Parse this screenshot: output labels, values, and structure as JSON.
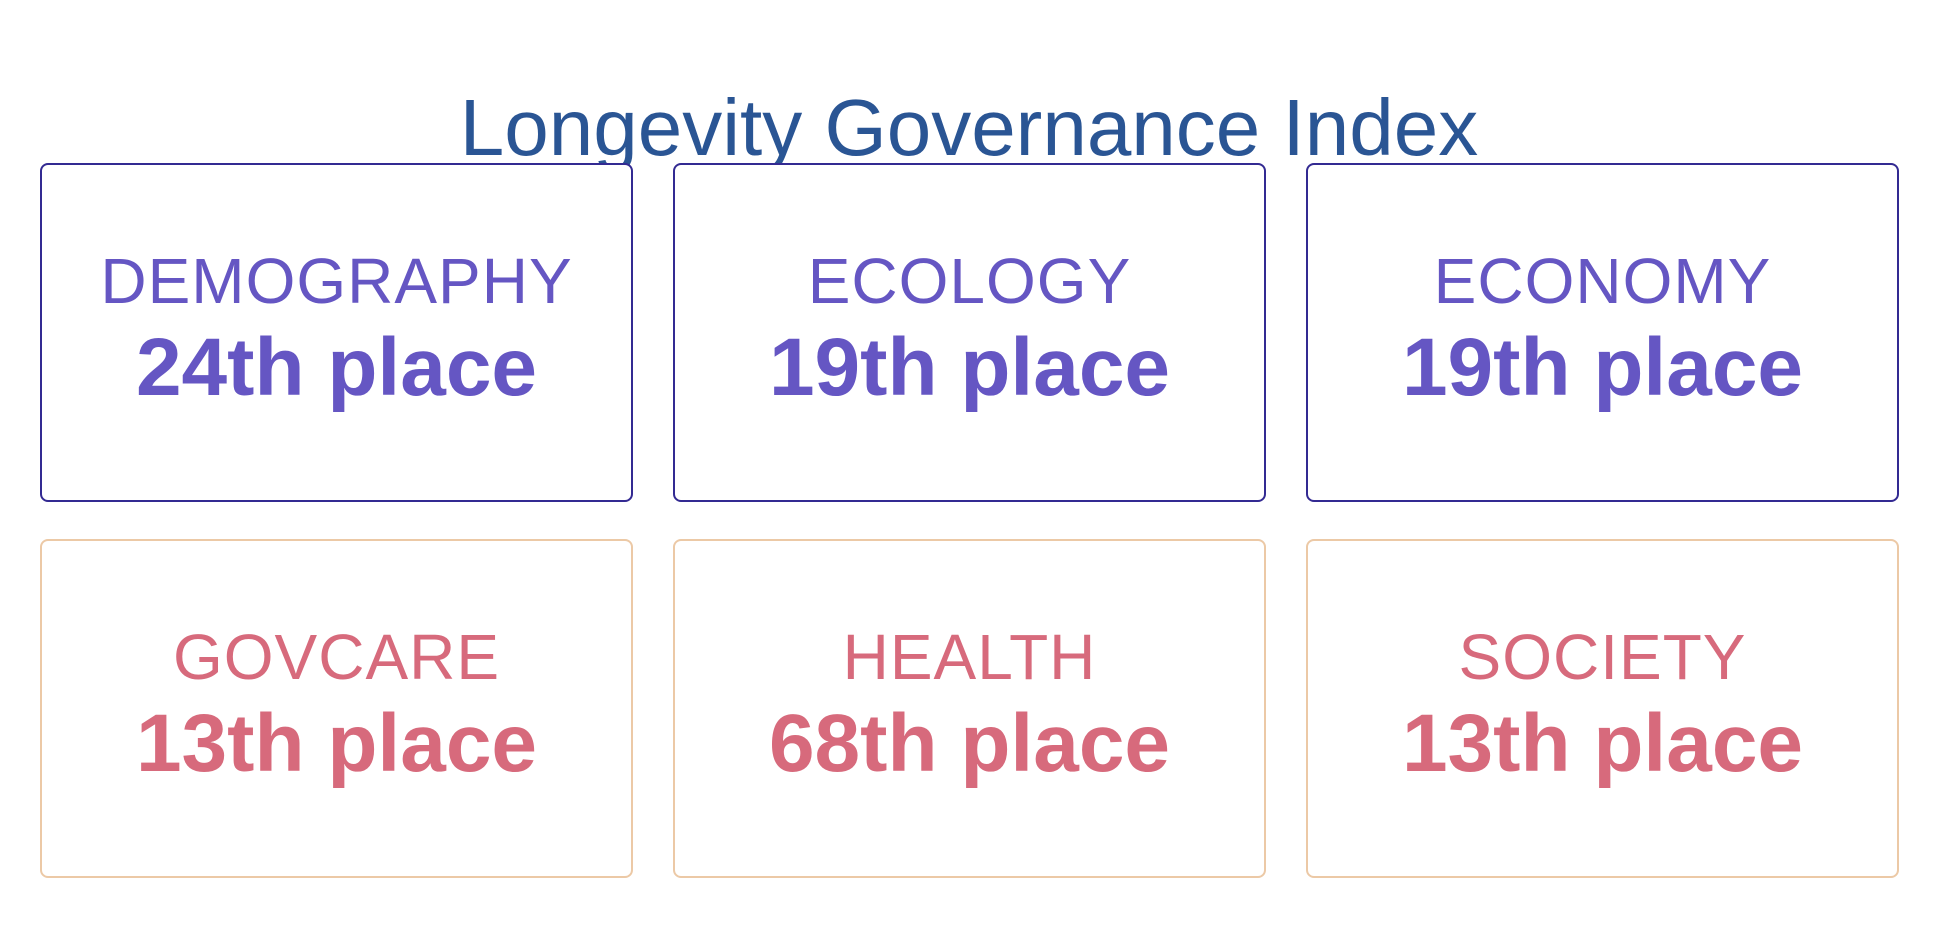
{
  "title": "Longevity Governance Index",
  "colors": {
    "title": "#2a5594",
    "purple_text": "#6556c3",
    "purple_border": "#332a92",
    "pink_text": "#d76a7c",
    "pink_border": "#ecc9a6"
  },
  "cards": [
    {
      "category": "DEMOGRAPHY",
      "rank": "24th place",
      "theme": "purple"
    },
    {
      "category": "ECOLOGY",
      "rank": "19th place",
      "theme": "purple"
    },
    {
      "category": "ECONOMY",
      "rank": "19th place",
      "theme": "purple"
    },
    {
      "category": "GOVCARE",
      "rank": "13th place",
      "theme": "pink"
    },
    {
      "category": "HEALTH",
      "rank": "68th place",
      "theme": "pink"
    },
    {
      "category": "SOCIETY",
      "rank": "13th place",
      "theme": "pink"
    }
  ]
}
